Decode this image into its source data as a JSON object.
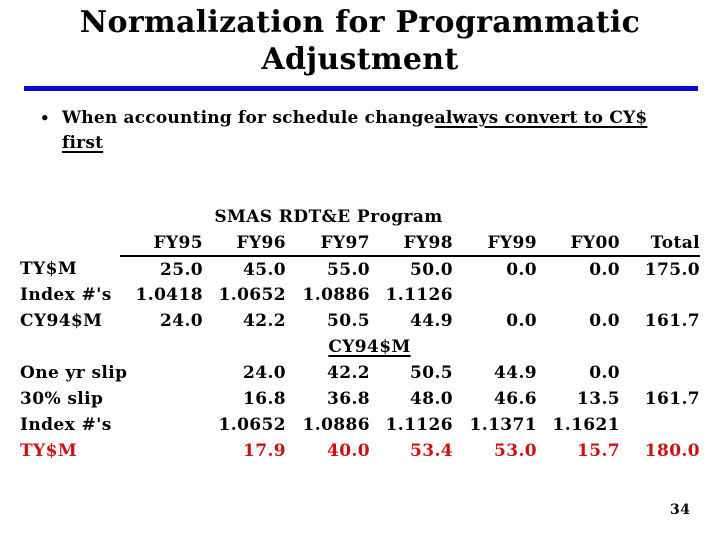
{
  "title": "Normalization for Programmatic Adjustment",
  "bullet": {
    "plain": "When accounting for schedule change",
    "underlined_line1": "always convert to CY$",
    "underlined_line2": "first"
  },
  "table": {
    "group_title": "SMAS RDT&E Program",
    "columns": [
      "FY95",
      "FY96",
      "FY97",
      "FY98",
      "FY99",
      "FY00",
      "Total"
    ],
    "upper_rows": [
      {
        "label": "TY$M",
        "values": [
          "25.0",
          "45.0",
          "55.0",
          "50.0",
          "0.0",
          "0.0",
          "175.0"
        ]
      },
      {
        "label": "Index #'s",
        "values": [
          "1.0418",
          "1.0652",
          "1.0886",
          "1.1126",
          "",
          "",
          ""
        ]
      },
      {
        "label": "CY94$M",
        "values": [
          "24.0",
          "42.2",
          "50.5",
          "44.9",
          "0.0",
          "0.0",
          "161.7"
        ]
      }
    ],
    "mid_header": "CY94$M",
    "lower_rows": [
      {
        "label": "One yr slip",
        "values": [
          "",
          "24.0",
          "42.2",
          "50.5",
          "44.9",
          "0.0",
          ""
        ]
      },
      {
        "label": "30% slip",
        "values": [
          "",
          "16.8",
          "36.8",
          "48.0",
          "46.6",
          "13.5",
          "161.7"
        ]
      },
      {
        "label": "Index #'s",
        "values": [
          "",
          "1.0652",
          "1.0886",
          "1.1126",
          "1.1371",
          "1.1621",
          ""
        ]
      },
      {
        "label": "TY$M",
        "values": [
          "",
          "17.9",
          "40.0",
          "53.4",
          "53.0",
          "15.7",
          "180.0"
        ],
        "highlight": true
      }
    ]
  },
  "page_number": "34",
  "colors": {
    "divider_blue": "#0A0ACC",
    "highlight_red": "#CC1111",
    "text_black": "#000000"
  }
}
